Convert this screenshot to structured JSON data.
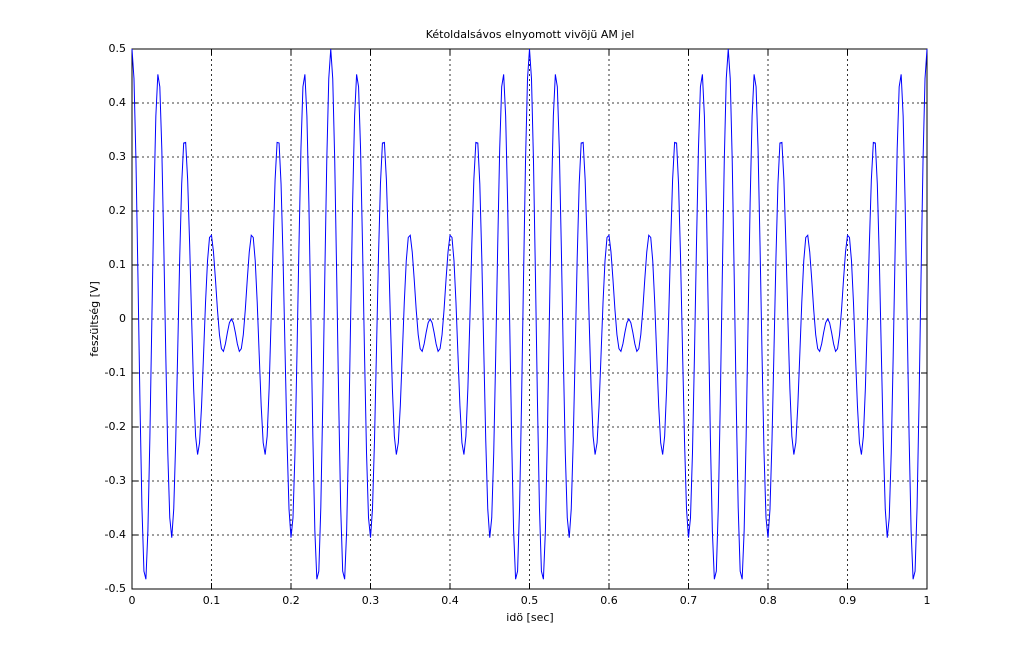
{
  "chart_data": {
    "type": "line",
    "title": "Kétoldalsávos elnyomott vivöjü AM jel",
    "x_label": "idö [sec]",
    "y_label": "feszültség [V]",
    "x": [
      0,
      0.0025,
      0.005,
      0.0075,
      0.01,
      0.0125,
      0.015,
      0.0175,
      0.02,
      0.0225,
      0.025,
      0.0275,
      0.03,
      0.0325,
      0.035,
      0.0375,
      0.04,
      0.0425,
      0.045,
      0.0475,
      0.05,
      0.0525,
      0.055,
      0.0575,
      0.06,
      0.0625,
      0.065,
      0.0675,
      0.07,
      0.0725,
      0.075,
      0.0775,
      0.08,
      0.0825,
      0.085,
      0.0875,
      0.09,
      0.0925,
      0.095,
      0.0975,
      0.1,
      0.1025,
      0.105,
      0.1075,
      0.11,
      0.1125,
      0.115,
      0.1175,
      0.12,
      0.1225,
      0.125,
      0.1275,
      0.13,
      0.1325,
      0.135,
      0.1375,
      0.14,
      0.1425,
      0.145,
      0.1475,
      0.15,
      0.1525,
      0.155,
      0.1575,
      0.16,
      0.1625,
      0.165,
      0.1675,
      0.17,
      0.1725,
      0.175,
      0.1775,
      0.18,
      0.1825,
      0.185,
      0.1875,
      0.19,
      0.1925,
      0.195,
      0.1975,
      0.2,
      0.2025,
      0.205,
      0.2075,
      0.21,
      0.2125,
      0.215,
      0.2175,
      0.22,
      0.2225,
      0.225,
      0.2275,
      0.23,
      0.2325,
      0.235,
      0.2375,
      0.24,
      0.2425,
      0.245,
      0.2475,
      0.25,
      0.2525,
      0.255,
      0.2575,
      0.26,
      0.2625,
      0.265,
      0.2675,
      0.27,
      0.2725,
      0.275,
      0.2775,
      0.28,
      0.2825,
      0.285,
      0.2875,
      0.29,
      0.2925,
      0.295,
      0.2975,
      0.3,
      0.3025,
      0.305,
      0.3075,
      0.31,
      0.3125,
      0.315,
      0.3175,
      0.32,
      0.3225,
      0.325,
      0.3275,
      0.33,
      0.3325,
      0.335,
      0.3375,
      0.34,
      0.3425,
      0.345,
      0.3475,
      0.35,
      0.3525,
      0.355,
      0.3575,
      0.36,
      0.3625,
      0.365,
      0.3675,
      0.37,
      0.3725,
      0.375,
      0.3775,
      0.38,
      0.3825,
      0.385,
      0.3875,
      0.39,
      0.3925,
      0.395,
      0.3975,
      0.4,
      0.4025,
      0.405,
      0.4075,
      0.41,
      0.4125,
      0.415,
      0.4175,
      0.42,
      0.4225,
      0.425,
      0.4275,
      0.43,
      0.4325,
      0.435,
      0.4375,
      0.44,
      0.4425,
      0.445,
      0.4475,
      0.45,
      0.4525,
      0.455,
      0.4575,
      0.46,
      0.4625,
      0.465,
      0.4675,
      0.47,
      0.4725,
      0.475,
      0.4775,
      0.48,
      0.4825,
      0.485,
      0.4875,
      0.49,
      0.4925,
      0.495,
      0.4975,
      0.5,
      0.5025,
      0.505,
      0.5075,
      0.51,
      0.5125,
      0.515,
      0.5175,
      0.52,
      0.5225,
      0.525,
      0.5275,
      0.53,
      0.5325,
      0.535,
      0.5375,
      0.54,
      0.5425,
      0.545,
      0.5475,
      0.55,
      0.5525,
      0.555,
      0.5575,
      0.56,
      0.5625,
      0.565,
      0.5675,
      0.57,
      0.5725,
      0.575,
      0.5775,
      0.58,
      0.5825,
      0.585,
      0.5875,
      0.59,
      0.5925,
      0.595,
      0.5975,
      0.6,
      0.6025,
      0.605,
      0.6075,
      0.61,
      0.6125,
      0.615,
      0.6175,
      0.62,
      0.6225,
      0.625,
      0.6275,
      0.63,
      0.6325,
      0.635,
      0.6375,
      0.64,
      0.6425,
      0.645,
      0.6475,
      0.65,
      0.6525,
      0.655,
      0.6575,
      0.66,
      0.6625,
      0.665,
      0.6675,
      0.67,
      0.6725,
      0.675,
      0.6775,
      0.68,
      0.6825,
      0.685,
      0.6875,
      0.69,
      0.6925,
      0.695,
      0.6975,
      0.7,
      0.7025,
      0.705,
      0.7075,
      0.71,
      0.7125,
      0.715,
      0.7175,
      0.72,
      0.7225,
      0.725,
      0.7275,
      0.73,
      0.7325,
      0.735,
      0.7375,
      0.74,
      0.7425,
      0.745,
      0.7475,
      0.75,
      0.7525,
      0.755,
      0.7575,
      0.76,
      0.7625,
      0.765,
      0.7675,
      0.77,
      0.7725,
      0.775,
      0.7775,
      0.78,
      0.7825,
      0.785,
      0.7875,
      0.79,
      0.7925,
      0.795,
      0.7975,
      0.8,
      0.8025,
      0.805,
      0.8075,
      0.81,
      0.8125,
      0.815,
      0.8175,
      0.82,
      0.8225,
      0.825,
      0.8275,
      0.83,
      0.8325,
      0.835,
      0.8375,
      0.84,
      0.8425,
      0.845,
      0.8475,
      0.85,
      0.8525,
      0.855,
      0.8575,
      0.86,
      0.8625,
      0.865,
      0.8675,
      0.87,
      0.8725,
      0.875,
      0.8775,
      0.88,
      0.8825,
      0.885,
      0.8875,
      0.89,
      0.8925,
      0.895,
      0.8975,
      0.9,
      0.9025,
      0.905,
      0.9075,
      0.91,
      0.9125,
      0.915,
      0.9175,
      0.92,
      0.9225,
      0.925,
      0.9275,
      0.93,
      0.9325,
      0.935,
      0.9375,
      0.94,
      0.9425,
      0.945,
      0.9475,
      0.95,
      0.9525,
      0.955,
      0.9575,
      0.96,
      0.9625,
      0.965,
      0.9675,
      0.97,
      0.9725,
      0.975,
      0.9775,
      0.98,
      0.9825,
      0.985,
      0.9875,
      0.99,
      0.9925,
      0.995,
      0.9975,
      1
    ],
    "series": [
      {
        "color": "#0000ff",
        "values": [
          0.5,
          0.445,
          0.293,
          0.078,
          -0.153,
          -0.349,
          -0.467,
          -0.482,
          -0.392,
          -0.218,
          0,
          0.214,
          0.376,
          0.453,
          0.43,
          0.315,
          0.135,
          -0.067,
          -0.248,
          -0.368,
          -0.405,
          -0.352,
          -0.226,
          -0.059,
          0.113,
          0.25,
          0.326,
          0.327,
          0.258,
          0.139,
          0,
          -0.128,
          -0.217,
          -0.251,
          -0.229,
          -0.161,
          -0.066,
          0.031,
          0.108,
          0.151,
          0.155,
          0.124,
          0.073,
          0.017,
          -0.029,
          -0.055,
          -0.06,
          -0.046,
          -0.025,
          -0.007,
          0,
          -0.007,
          -0.025,
          -0.046,
          -0.06,
          -0.055,
          -0.029,
          0.017,
          0.073,
          0.124,
          0.155,
          0.151,
          0.108,
          0.031,
          -0.066,
          -0.161,
          -0.229,
          -0.251,
          -0.217,
          -0.128,
          0,
          0.139,
          0.258,
          0.327,
          0.326,
          0.25,
          0.113,
          -0.059,
          -0.226,
          -0.352,
          -0.405,
          -0.368,
          -0.248,
          -0.067,
          0.135,
          0.315,
          0.43,
          0.453,
          0.376,
          0.214,
          0,
          -0.218,
          -0.392,
          -0.482,
          -0.467,
          -0.349,
          -0.153,
          0.078,
          0.293,
          0.445,
          0.5,
          0.445,
          0.293,
          0.078,
          -0.153,
          -0.349,
          -0.467,
          -0.482,
          -0.392,
          -0.218,
          0,
          0.214,
          0.376,
          0.453,
          0.43,
          0.315,
          0.135,
          -0.067,
          -0.248,
          -0.368,
          -0.405,
          -0.352,
          -0.226,
          -0.059,
          0.113,
          0.25,
          0.326,
          0.327,
          0.258,
          0.139,
          0,
          -0.128,
          -0.217,
          -0.251,
          -0.229,
          -0.161,
          -0.066,
          0.031,
          0.108,
          0.151,
          0.155,
          0.124,
          0.073,
          0.017,
          -0.029,
          -0.055,
          -0.06,
          -0.046,
          -0.025,
          -0.007,
          0,
          -0.007,
          -0.025,
          -0.046,
          -0.06,
          -0.055,
          -0.029,
          0.017,
          0.073,
          0.124,
          0.155,
          0.151,
          0.108,
          0.031,
          -0.066,
          -0.161,
          -0.229,
          -0.251,
          -0.217,
          -0.128,
          0,
          0.139,
          0.258,
          0.327,
          0.326,
          0.25,
          0.113,
          -0.059,
          -0.226,
          -0.352,
          -0.405,
          -0.368,
          -0.248,
          -0.067,
          0.135,
          0.315,
          0.43,
          0.453,
          0.376,
          0.214,
          0,
          -0.218,
          -0.392,
          -0.482,
          -0.467,
          -0.349,
          -0.153,
          0.078,
          0.293,
          0.445,
          0.5,
          0.445,
          0.293,
          0.078,
          -0.153,
          -0.349,
          -0.467,
          -0.482,
          -0.392,
          -0.218,
          0,
          0.214,
          0.376,
          0.453,
          0.43,
          0.315,
          0.135,
          -0.067,
          -0.248,
          -0.368,
          -0.405,
          -0.352,
          -0.226,
          -0.059,
          0.113,
          0.25,
          0.326,
          0.327,
          0.258,
          0.139,
          0,
          -0.128,
          -0.217,
          -0.251,
          -0.229,
          -0.161,
          -0.066,
          0.031,
          0.108,
          0.151,
          0.155,
          0.124,
          0.073,
          0.017,
          -0.029,
          -0.055,
          -0.06,
          -0.046,
          -0.025,
          -0.007,
          0,
          -0.007,
          -0.025,
          -0.046,
          -0.06,
          -0.055,
          -0.029,
          0.017,
          0.073,
          0.124,
          0.155,
          0.151,
          0.108,
          0.031,
          -0.066,
          -0.161,
          -0.229,
          -0.251,
          -0.217,
          -0.128,
          0,
          0.139,
          0.258,
          0.327,
          0.326,
          0.25,
          0.113,
          -0.059,
          -0.226,
          -0.352,
          -0.405,
          -0.368,
          -0.248,
          -0.067,
          0.135,
          0.315,
          0.43,
          0.453,
          0.376,
          0.214,
          0,
          -0.218,
          -0.392,
          -0.482,
          -0.467,
          -0.349,
          -0.153,
          0.078,
          0.293,
          0.445,
          0.5,
          0.445,
          0.293,
          0.078,
          -0.153,
          -0.349,
          -0.467,
          -0.482,
          -0.392,
          -0.218,
          0,
          0.214,
          0.376,
          0.453,
          0.43,
          0.315,
          0.135,
          -0.067,
          -0.248,
          -0.368,
          -0.405,
          -0.352,
          -0.226,
          -0.059,
          0.113,
          0.25,
          0.326,
          0.327,
          0.258,
          0.139,
          0,
          -0.128,
          -0.217,
          -0.251,
          -0.229,
          -0.161,
          -0.066,
          0.031,
          0.108,
          0.151,
          0.155,
          0.124,
          0.073,
          0.017,
          -0.029,
          -0.055,
          -0.06,
          -0.046,
          -0.025,
          -0.007,
          0,
          -0.007,
          -0.025,
          -0.046,
          -0.06,
          -0.055,
          -0.029,
          0.017,
          0.073,
          0.124,
          0.155,
          0.151,
          0.108,
          0.031,
          -0.066,
          -0.161,
          -0.229,
          -0.251,
          -0.217,
          -0.128,
          0,
          0.139,
          0.258,
          0.327,
          0.326,
          0.25,
          0.113,
          -0.059,
          -0.226,
          -0.352,
          -0.405,
          -0.368,
          -0.248,
          -0.067,
          0.135,
          0.315,
          0.43,
          0.453,
          0.376,
          0.214,
          0,
          -0.218,
          -0.392,
          -0.482,
          -0.467,
          -0.349,
          -0.153,
          0.078,
          0.293,
          0.445,
          0.5
        ]
      }
    ],
    "xlim": [
      0,
      1
    ],
    "xticks": [
      0,
      0.1,
      0.2,
      0.3,
      0.4,
      0.5,
      0.6,
      0.7,
      0.8,
      0.9,
      1
    ],
    "ylim": [
      -0.5,
      0.5
    ],
    "yticks": [
      -0.5,
      -0.4,
      -0.3,
      -0.2,
      -0.1,
      0,
      0.1,
      0.2,
      0.3,
      0.4,
      0.5
    ],
    "grid": true
  }
}
